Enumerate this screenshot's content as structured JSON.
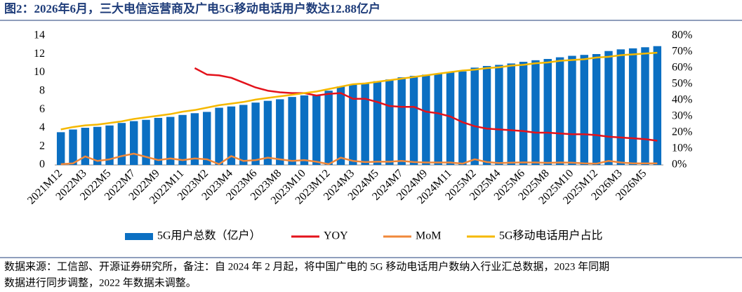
{
  "chart_data": {
    "type": "bar-line",
    "title": "图2：2026年6月，三大电信运营商及广电5G移动电话用户数达12.88亿户",
    "categories": [
      "2021M12",
      null,
      "2022M3",
      null,
      "2022M5",
      null,
      "2022M7",
      null,
      "2022M9",
      null,
      "2022M11",
      null,
      "2023M2",
      null,
      "2023M4",
      null,
      "2023M6",
      null,
      "2023M8",
      null,
      "2023M10",
      null,
      "2023M12",
      null,
      "2024M3",
      null,
      "2024M5",
      null,
      "2024M7",
      null,
      "2024M9",
      null,
      "2024M11",
      null,
      "2025M2",
      null,
      "2025M4",
      null,
      "2025M6",
      null,
      "2025M8",
      null,
      "2025M10",
      null,
      "2025M12",
      null,
      "2026M3",
      null,
      "2026M5",
      null
    ],
    "series": [
      {
        "name": "5G用户总数（亿户）",
        "type": "bar",
        "color": "#0b6fc2",
        "values": [
          3.55,
          3.84,
          4.03,
          4.13,
          4.28,
          4.55,
          4.75,
          4.89,
          5.1,
          5.21,
          5.42,
          5.61,
          5.75,
          6.2,
          6.34,
          6.51,
          6.76,
          6.95,
          7.12,
          7.37,
          7.54,
          7.55,
          8.05,
          8.51,
          8.74,
          8.89,
          9.08,
          9.27,
          9.5,
          9.66,
          9.79,
          9.93,
          10.07,
          10.14,
          10.55,
          10.73,
          10.85,
          11.0,
          11.18,
          11.35,
          11.49,
          11.67,
          11.83,
          11.93,
          12.02,
          12.35,
          12.53,
          12.64,
          12.76,
          12.88
        ]
      },
      {
        "name": "YOY",
        "type": "line",
        "axis": "y2",
        "color": "#e3121b",
        "values": [
          null,
          null,
          null,
          null,
          null,
          null,
          null,
          null,
          null,
          null,
          null,
          60,
          56,
          55.5,
          54,
          51,
          48,
          46,
          45,
          44.5,
          44.5,
          43,
          44,
          44.5,
          41,
          41,
          39,
          36.5,
          36,
          36,
          33,
          32,
          30,
          26.5,
          24,
          22.5,
          22,
          21.5,
          21,
          20,
          20,
          19.5,
          19,
          19,
          18.5,
          17.5,
          17,
          16.5,
          16,
          15
        ]
      },
      {
        "name": "MoM",
        "type": "line",
        "axis": "y2",
        "color": "#f0883a",
        "values": [
          0.5,
          1.0,
          5.3,
          2.5,
          3.5,
          5.5,
          7.0,
          5.0,
          3.0,
          4.0,
          3.0,
          4.0,
          3.5,
          0.5,
          5.5,
          2.5,
          3.0,
          4.5,
          3.5,
          2.5,
          3.0,
          2.0,
          0.5,
          4.5,
          2.5,
          1.8,
          2.0,
          2.0,
          2.5,
          1.8,
          1.5,
          1.5,
          1.5,
          0.8,
          3.5,
          1.8,
          1.2,
          1.4,
          1.6,
          1.5,
          1.3,
          1.5,
          1.4,
          1.0,
          0.8,
          2.5,
          1.5,
          1.0,
          1.0,
          1.0
        ]
      },
      {
        "name": "5G移动电话用户占比",
        "type": "line",
        "axis": "y2",
        "color": "#f5b800",
        "values": [
          22,
          23.5,
          24.5,
          25,
          26,
          27,
          28.5,
          29.5,
          30.5,
          31.5,
          33,
          34,
          35.5,
          37,
          38,
          39,
          40.5,
          41.5,
          42.5,
          43.5,
          44.5,
          45.5,
          47,
          48.5,
          50,
          50.5,
          51.5,
          52.5,
          53.5,
          54.5,
          55.5,
          56.5,
          57.5,
          58.5,
          59,
          60,
          60.5,
          61.5,
          62,
          63,
          63.5,
          64.5,
          65,
          65.5,
          66.5,
          67,
          68,
          68.5,
          69,
          69.5
        ]
      }
    ],
    "ylim": [
      0,
      14
    ],
    "yticks": [
      0,
      2,
      4,
      6,
      8,
      10,
      12,
      14
    ],
    "y2lim": [
      0,
      80
    ],
    "y2ticks": [
      {
        "value": 0,
        "label": "0%"
      },
      {
        "value": 10,
        "label": "10%"
      },
      {
        "value": 20,
        "label": "20%"
      },
      {
        "value": 30,
        "label": "30%"
      },
      {
        "value": 40,
        "label": "40%"
      },
      {
        "value": 50,
        "label": "50%"
      },
      {
        "value": 60,
        "label": "60%"
      },
      {
        "value": 70,
        "label": "70%"
      },
      {
        "value": 80,
        "label": "80%"
      }
    ],
    "grid": false,
    "legend": "bottom"
  },
  "note": [
    "数据来源：工信部、开源证券研究所，备注：自 2024 年 2 月起，将中国广电的 5G 移动电话用户数纳入行业汇总数据，2023 年同期",
    "数据进行同步调整，2022 年数据未调整。"
  ]
}
